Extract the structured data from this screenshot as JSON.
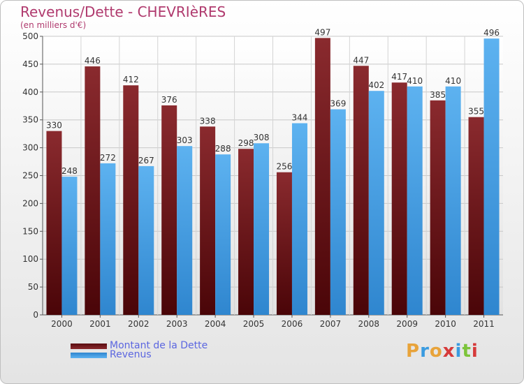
{
  "title": "Revenus/Dette - CHEVRIèRES",
  "subtitle": "(en milliers d'€)",
  "legend": [
    {
      "label": "Montant de la Dette",
      "color": "#7b1a1f"
    },
    {
      "label": "Revenus",
      "color": "#4aa3e8"
    }
  ],
  "logo": {
    "letters": [
      "P",
      "r",
      "o",
      "x",
      "i",
      "t",
      "i"
    ],
    "colors": [
      "#e8a33a",
      "#3a9be0",
      "#e8a33a",
      "#d63a3a",
      "#3a9be0",
      "#7cc43a",
      "#d63a3a"
    ]
  },
  "chart_data": {
    "type": "bar",
    "categories": [
      "2000",
      "2001",
      "2002",
      "2003",
      "2004",
      "2005",
      "2006",
      "2007",
      "2008",
      "2009",
      "2010",
      "2011"
    ],
    "series": [
      {
        "name": "Montant de la Dette",
        "values": [
          330,
          446,
          412,
          376,
          338,
          298,
          256,
          497,
          447,
          417,
          385,
          355
        ]
      },
      {
        "name": "Revenus",
        "values": [
          248,
          272,
          267,
          303,
          288,
          308,
          344,
          369,
          402,
          410,
          410,
          496
        ]
      }
    ],
    "yticks": [
      0,
      50,
      100,
      150,
      200,
      250,
      300,
      350,
      400,
      450,
      500
    ],
    "ylim": [
      0,
      500
    ],
    "grid": true,
    "legend_position": "bottom-left"
  }
}
